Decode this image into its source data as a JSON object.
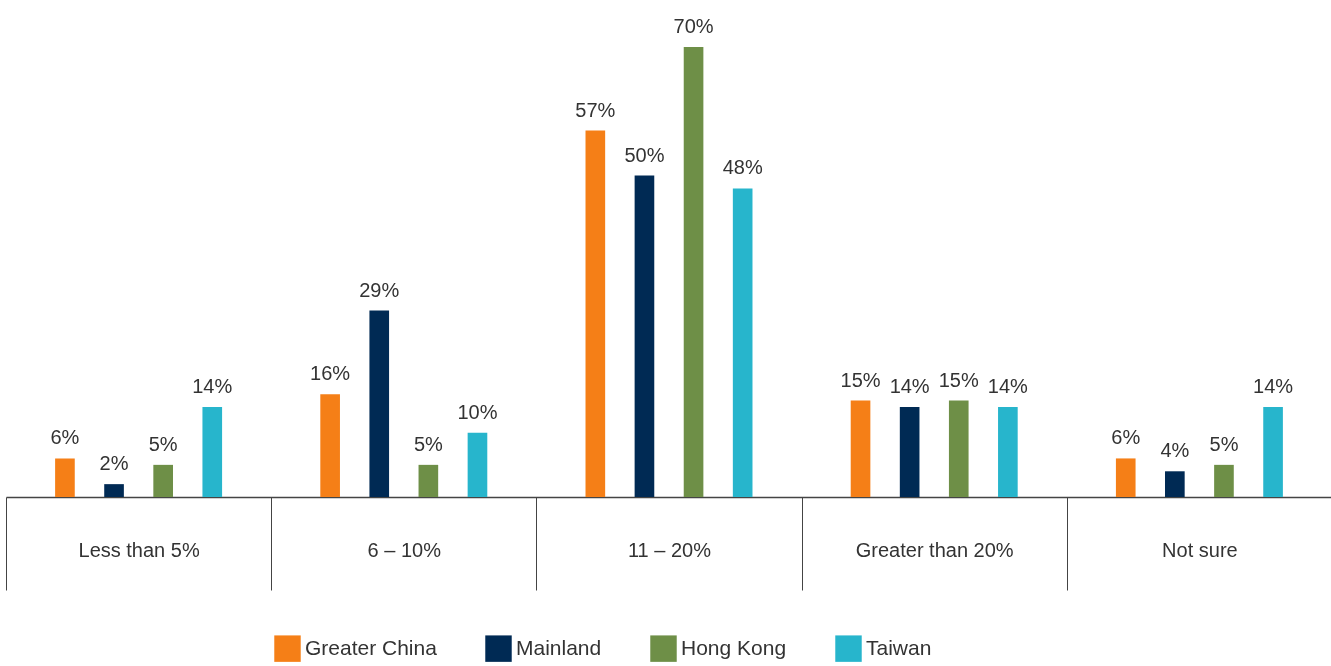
{
  "chart_data": {
    "type": "bar",
    "categories": [
      "Less than 5%",
      "6 – 10%",
      "11 – 20%",
      "Greater than 20%",
      "Not sure"
    ],
    "series": [
      {
        "name": "Greater China",
        "color": "#f57f17",
        "values": [
          6,
          16,
          57,
          15,
          6
        ],
        "value_labels": [
          "6%",
          "16%",
          "57%",
          "15%",
          "6%"
        ]
      },
      {
        "name": "Mainland",
        "color": "#002a54",
        "values": [
          2,
          29,
          50,
          14,
          4
        ],
        "value_labels": [
          "2%",
          "29%",
          "50%",
          "14%",
          "4%"
        ]
      },
      {
        "name": "Hong Kong",
        "color": "#6e8f47",
        "values": [
          5,
          5,
          70,
          15,
          5
        ],
        "value_labels": [
          "5%",
          "5%",
          "70%",
          "15%",
          "5%"
        ]
      },
      {
        "name": "Taiwan",
        "color": "#27b5cc",
        "values": [
          14,
          10,
          48,
          14,
          14
        ],
        "value_labels": [
          "14%",
          "10%",
          "48%",
          "14%",
          "14%"
        ]
      }
    ],
    "legend": "bottom"
  }
}
